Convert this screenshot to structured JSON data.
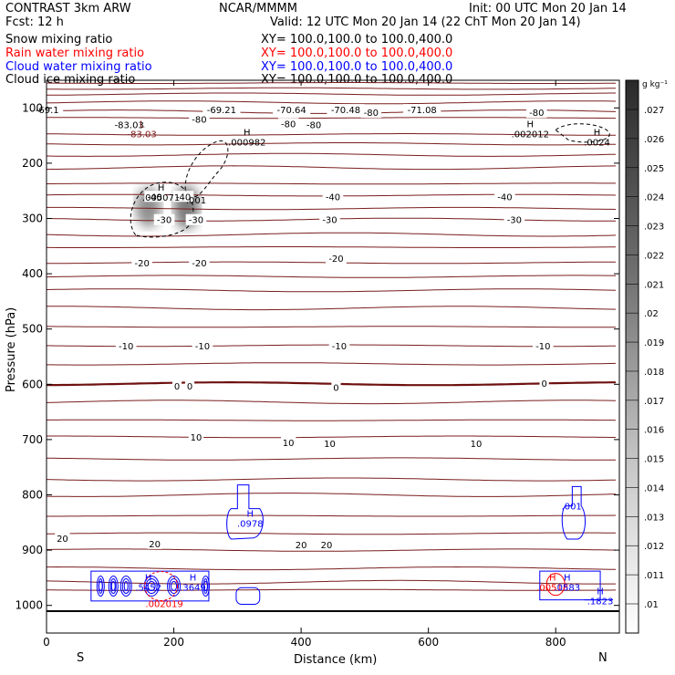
{
  "header": {
    "model": "CONTRAST  3km ARW",
    "center": "NCAR/MMMM",
    "init": "Init: 00 UTC Mon 20 Jan 14",
    "fcst": "Fcst:   12 h",
    "valid": "Valid: 12 UTC Mon 20 Jan 14 (22 ChT Mon 20 Jan 14)"
  },
  "legend": [
    {
      "label": "Snow mixing ratio",
      "xy": "XY= 100.0,100.0 to 100.0,400.0",
      "color": "#000000"
    },
    {
      "label": "Rain water mixing ratio",
      "xy": "XY= 100.0,100.0 to 100.0,400.0",
      "color": "#ff0000"
    },
    {
      "label": "Cloud water mixing ratio",
      "xy": "XY= 100.0,100.0 to 100.0,400.0",
      "color": "#0000ff"
    },
    {
      "label": "Cloud ice mixing ratio",
      "xy": "XY= 100.0,100.0 to 100.0,400.0",
      "color": "#000000"
    }
  ],
  "colorbar": {
    "unit": "g kg⁻¹",
    "ticks": [
      ".027",
      ".026",
      ".025",
      ".024",
      ".023",
      ".022",
      ".021",
      ".02",
      ".019",
      ".018",
      ".017",
      ".016",
      ".015",
      ".014",
      ".013",
      ".012",
      ".011",
      ".01"
    ]
  },
  "chart_data": {
    "type": "contour",
    "xlabel": "Distance (km)",
    "ylabel": "Pressure (hPa)",
    "xlim": [
      0,
      900
    ],
    "ylim": [
      1050,
      50
    ],
    "x_ticks": [
      0,
      200,
      400,
      600,
      800
    ],
    "y_ticks": [
      100,
      200,
      300,
      400,
      500,
      600,
      700,
      800,
      900,
      1000
    ],
    "x_end_labels": [
      "S",
      "N"
    ],
    "temperature_contours": [
      {
        "p": 55
      },
      {
        "p": 65
      },
      {
        "p": 75
      },
      {
        "p": 90
      },
      {
        "p": 107
      },
      {
        "p": 118
      },
      {
        "p": 148
      },
      {
        "p": 165
      },
      {
        "p": 185
      },
      {
        "p": 208
      },
      {
        "p": 237
      },
      {
        "p": 258
      },
      {
        "p": 282
      },
      {
        "p": 302
      },
      {
        "p": 329
      },
      {
        "p": 352
      },
      {
        "p": 380
      },
      {
        "p": 405
      },
      {
        "p": 430
      },
      {
        "p": 462
      },
      {
        "p": 496
      },
      {
        "p": 530
      },
      {
        "p": 563
      },
      {
        "p": 599,
        "bold": true
      },
      {
        "p": 632
      },
      {
        "p": 665
      },
      {
        "p": 695
      },
      {
        "p": 735
      },
      {
        "p": 772
      },
      {
        "p": 800
      },
      {
        "p": 838
      },
      {
        "p": 870
      },
      {
        "p": 900
      },
      {
        "p": 933
      },
      {
        "p": 958
      },
      {
        "p": 972
      }
    ],
    "contour_labels": [
      {
        "x": 1,
        "p": 103,
        "text": "-69.1"
      },
      {
        "x": 275,
        "p": 103,
        "text": "-69.21"
      },
      {
        "x": 385,
        "p": 103,
        "text": "-70.64"
      },
      {
        "x": 470,
        "p": 103,
        "text": "-70.48"
      },
      {
        "x": 590,
        "p": 103,
        "text": "-71.08"
      },
      {
        "x": 130,
        "p": 130,
        "text": "-83.03"
      },
      {
        "x": 240,
        "p": 120,
        "text": "-80"
      },
      {
        "x": 380,
        "p": 128,
        "text": "-80"
      },
      {
        "x": 420,
        "p": 130,
        "text": "-80"
      },
      {
        "x": 510,
        "p": 108,
        "text": "-80"
      },
      {
        "x": 770,
        "p": 108,
        "text": "-80"
      },
      {
        "x": 170,
        "p": 260,
        "text": "-40"
      },
      {
        "x": 215,
        "p": 260,
        "text": "-40"
      },
      {
        "x": 450,
        "p": 260,
        "text": "-40"
      },
      {
        "x": 720,
        "p": 260,
        "text": "-40"
      },
      {
        "x": 185,
        "p": 302,
        "text": "-30"
      },
      {
        "x": 235,
        "p": 302,
        "text": "-30"
      },
      {
        "x": 445,
        "p": 302,
        "text": "-30"
      },
      {
        "x": 735,
        "p": 302,
        "text": "-30"
      },
      {
        "x": 150,
        "p": 380,
        "text": "-20"
      },
      {
        "x": 240,
        "p": 380,
        "text": "-20"
      },
      {
        "x": 455,
        "p": 372,
        "text": "-20"
      },
      {
        "x": 125,
        "p": 530,
        "text": "-10"
      },
      {
        "x": 245,
        "p": 530,
        "text": "-10"
      },
      {
        "x": 460,
        "p": 530,
        "text": "-10"
      },
      {
        "x": 780,
        "p": 530,
        "text": "-10"
      },
      {
        "x": 205,
        "p": 603,
        "text": "0"
      },
      {
        "x": 225,
        "p": 603,
        "text": "0"
      },
      {
        "x": 455,
        "p": 605,
        "text": "0"
      },
      {
        "x": 782,
        "p": 598,
        "text": "0"
      },
      {
        "x": 235,
        "p": 695,
        "text": "10"
      },
      {
        "x": 380,
        "p": 705,
        "text": "10"
      },
      {
        "x": 445,
        "p": 707,
        "text": "10"
      },
      {
        "x": 675,
        "p": 707,
        "text": "10"
      },
      {
        "x": 25,
        "p": 878,
        "text": "20"
      },
      {
        "x": 170,
        "p": 888,
        "text": "20"
      },
      {
        "x": 400,
        "p": 890,
        "text": "20"
      },
      {
        "x": 440,
        "p": 890,
        "text": "20"
      }
    ],
    "extrema": [
      {
        "x": 150,
        "p": 135,
        "letter": "L",
        "value": "-83.03",
        "color": "#7a1818"
      },
      {
        "x": 315,
        "p": 150,
        "letter": "H",
        "value": ".000982",
        "color": "#000000"
      },
      {
        "x": 760,
        "p": 135,
        "letter": "H",
        "value": ".002012",
        "color": "#000000"
      },
      {
        "x": 865,
        "p": 150,
        "letter": "H",
        "value": ".0024",
        "color": "#000000"
      },
      {
        "x": 180,
        "p": 250,
        "letter": "H",
        "value": ".005071",
        "color": "#000000"
      },
      {
        "x": 235,
        "p": 255,
        "letter": "",
        "value": ".001",
        "color": "#000000"
      },
      {
        "x": 320,
        "p": 840,
        "letter": "H",
        "value": ".0978",
        "color": "#0000ff"
      },
      {
        "x": 825,
        "p": 808,
        "letter": "",
        "value": ".001",
        "color": "#0000ff"
      },
      {
        "x": 160,
        "p": 955,
        "letter": "H",
        "value": ".5452",
        "color": "#0000ff"
      },
      {
        "x": 230,
        "p": 955,
        "letter": "H",
        "value": ".3649",
        "color": "#0000ff"
      },
      {
        "x": 185,
        "p": 985,
        "letter": "",
        "value": ".002019",
        "color": "#ff0000"
      },
      {
        "x": 795,
        "p": 955,
        "letter": "H",
        "value": ".00518",
        "color": "#ff0000"
      },
      {
        "x": 818,
        "p": 955,
        "letter": "H",
        "value": ".0583",
        "color": "#0000ff"
      },
      {
        "x": 870,
        "p": 980,
        "letter": "H",
        "value": ".1823",
        "color": "#0000ff"
      }
    ]
  }
}
